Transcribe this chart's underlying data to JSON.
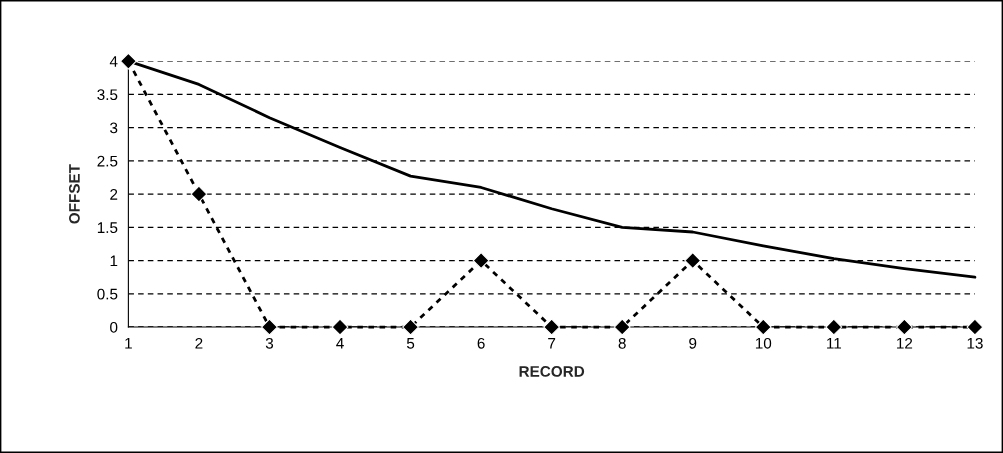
{
  "chart_data": {
    "type": "line",
    "xlabel": "RECORD",
    "ylabel": "OFFSET",
    "categories": [
      "1",
      "2",
      "3",
      "4",
      "5",
      "6",
      "7",
      "8",
      "9",
      "10",
      "11",
      "12",
      "13"
    ],
    "series": [
      {
        "color": "#000000",
        "line_style": "solid",
        "marker": "none",
        "values": [
          4,
          3.65,
          3.15,
          2.7,
          2.27,
          2.1,
          1.78,
          1.5,
          1.43,
          1.22,
          1.03,
          0.88,
          0.75
        ]
      },
      {
        "color": "#000000",
        "line_style": "dotted",
        "marker": "diamond",
        "values": [
          4,
          2,
          0,
          0,
          0,
          1,
          0,
          0,
          1,
          0,
          0,
          0,
          0
        ]
      }
    ],
    "ylim": [
      0,
      4
    ],
    "yticks": [
      0,
      0.5,
      1,
      1.5,
      2,
      2.5,
      3,
      3.5,
      4
    ],
    "grid": "y"
  }
}
